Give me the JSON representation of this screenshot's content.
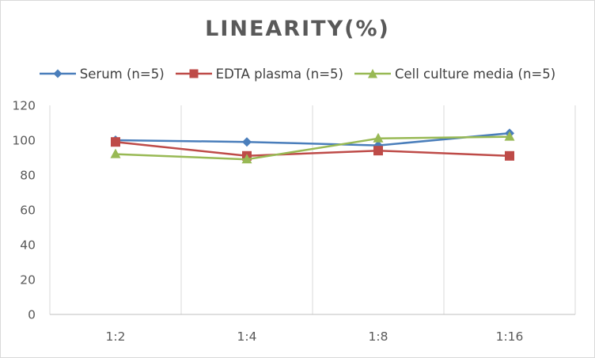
{
  "chart_data": {
    "type": "line",
    "title": "LINEARITY(%)",
    "categories": [
      "1:2",
      "1:4",
      "1:8",
      "1:16"
    ],
    "series": [
      {
        "name": "Serum (n=5)",
        "values": [
          100,
          99,
          97,
          104
        ],
        "color": "#4a7ebb",
        "marker": "diamond"
      },
      {
        "name": "EDTA plasma (n=5)",
        "values": [
          99,
          91,
          94,
          91
        ],
        "color": "#be4b48",
        "marker": "square"
      },
      {
        "name": "Cell culture media (n=5)",
        "values": [
          92,
          89,
          101,
          102
        ],
        "color": "#98b954",
        "marker": "triangle"
      }
    ],
    "ylim": [
      0,
      120
    ],
    "yticks": [
      0,
      20,
      40,
      60,
      80,
      100,
      120
    ],
    "grid": "vertical",
    "legend_position": "top"
  }
}
